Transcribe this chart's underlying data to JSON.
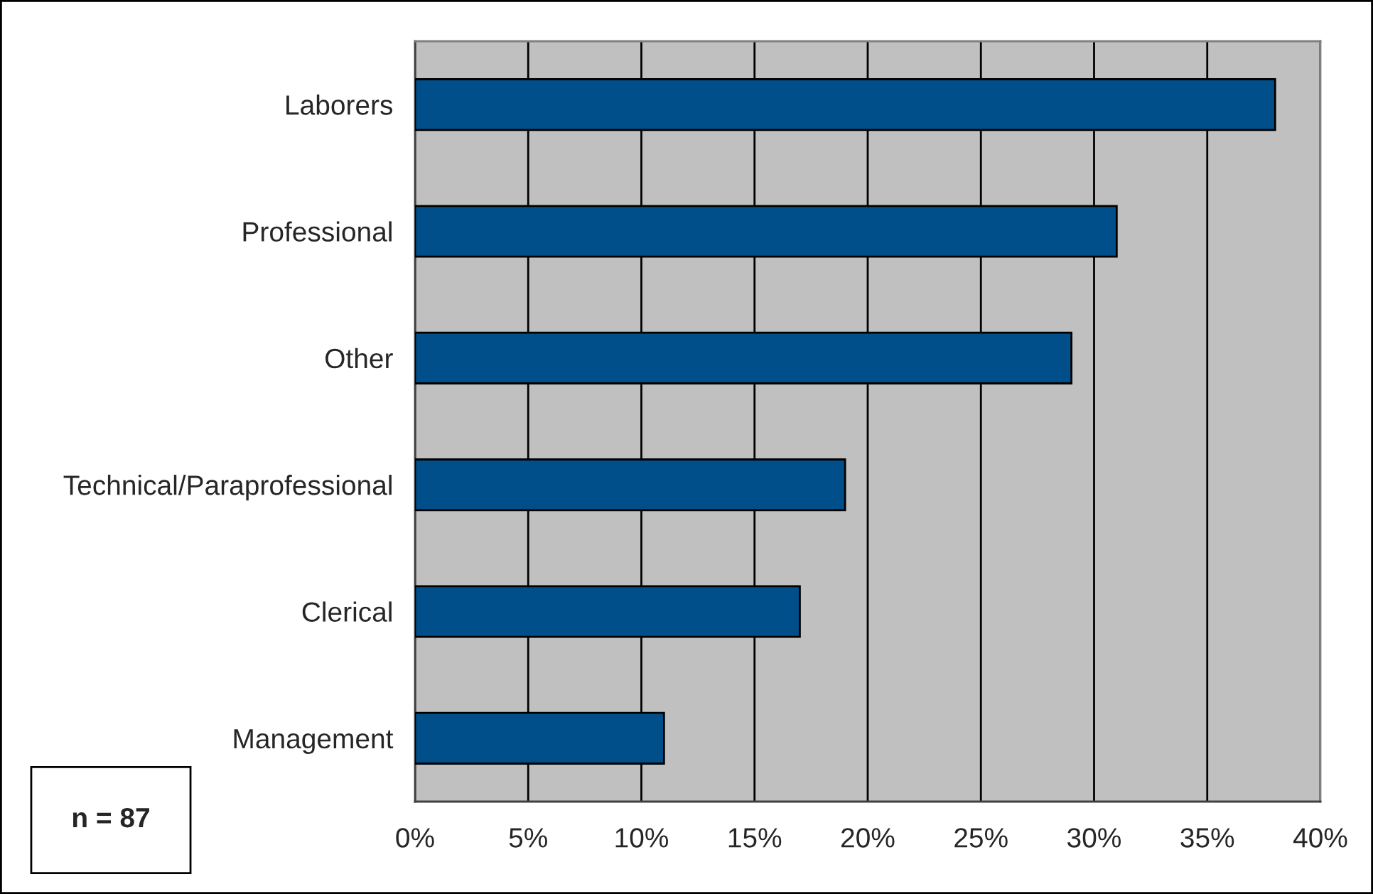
{
  "chart_data": {
    "type": "bar",
    "orientation": "horizontal",
    "categories": [
      "Laborers",
      "Professional",
      "Other",
      "Technical/Paraprofessional",
      "Clerical",
      "Management"
    ],
    "values": [
      38,
      31,
      29,
      19,
      17,
      11
    ],
    "color": "#004f8a",
    "xlim": [
      0,
      40
    ],
    "xticks": [
      {
        "value": 0,
        "label": "0%"
      },
      {
        "value": 5,
        "label": "5%"
      },
      {
        "value": 10,
        "label": "10%"
      },
      {
        "value": 15,
        "label": "15%"
      },
      {
        "value": 20,
        "label": "20%"
      },
      {
        "value": 25,
        "label": "25%"
      },
      {
        "value": 30,
        "label": "30%"
      },
      {
        "value": 35,
        "label": "35%"
      },
      {
        "value": 40,
        "label": "40%"
      }
    ],
    "grid": "x",
    "annotations": [
      "n = 87"
    ]
  }
}
